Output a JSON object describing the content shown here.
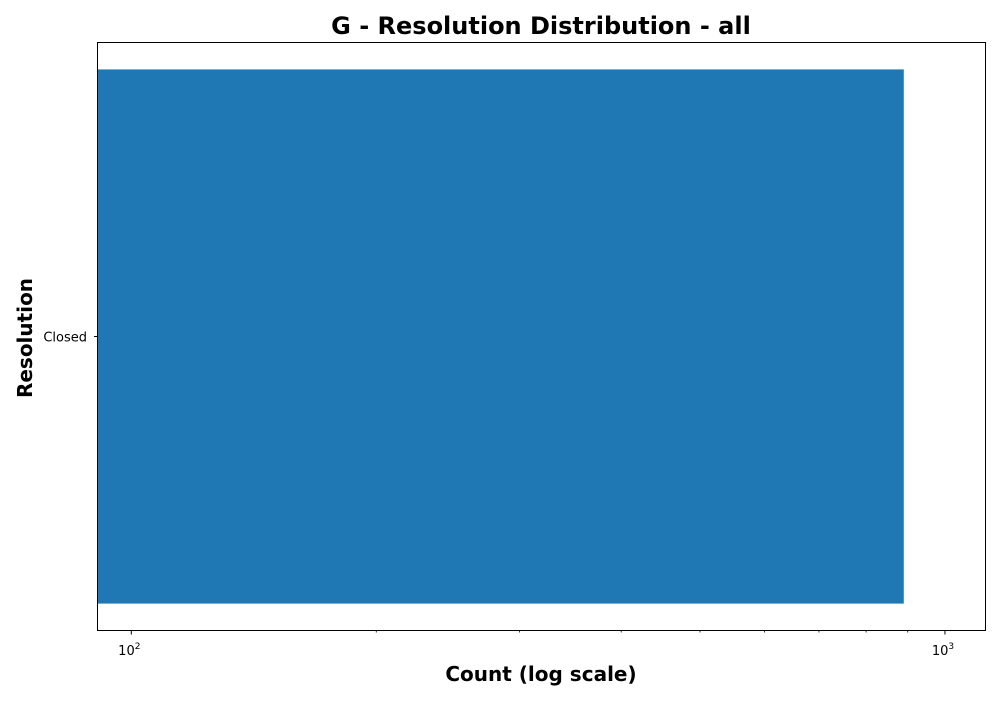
{
  "chart_data": {
    "type": "bar",
    "orientation": "horizontal",
    "title": "G - Resolution Distribution - all",
    "xlabel": "Count (log scale)",
    "ylabel": "Resolution",
    "x_scale": "log",
    "xlim": [
      91,
      1120
    ],
    "x_tick_labels": [
      {
        "base": "10",
        "exp": "2",
        "value": 100
      },
      {
        "base": "10",
        "exp": "3",
        "value": 1000
      }
    ],
    "categories": [
      "Closed"
    ],
    "values": [
      890
    ],
    "bar_color": "#1f77b4",
    "grid": false,
    "legend": "none"
  }
}
